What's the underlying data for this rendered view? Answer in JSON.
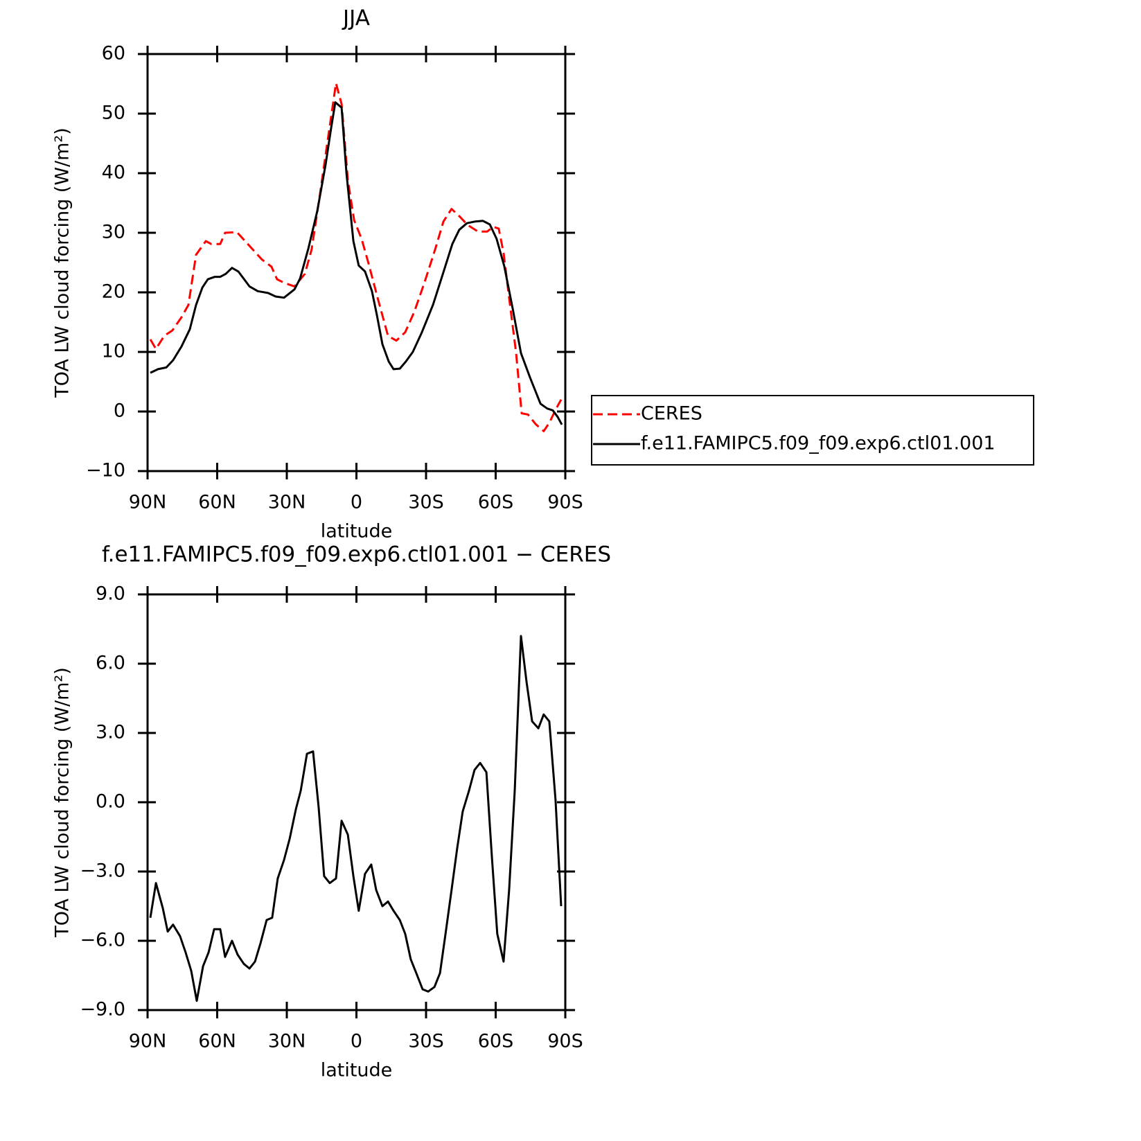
{
  "chart_data": [
    {
      "type": "line",
      "title": "JJA",
      "xlabel": "latitude",
      "ylabel": "TOA LW cloud forcing (W/m²)",
      "xlim": [
        90,
        -90
      ],
      "xticks": [
        {
          "value": 90,
          "label": "90N"
        },
        {
          "value": 60,
          "label": "60N"
        },
        {
          "value": 30,
          "label": "30N"
        },
        0,
        {
          "value": -30,
          "label": "30S"
        },
        {
          "value": -60,
          "label": "60S"
        },
        {
          "value": -90,
          "label": "90S"
        }
      ],
      "ylim": [
        -10,
        60
      ],
      "yticks": [
        {
          "value": -10,
          "label": "−10"
        },
        0,
        10,
        20,
        30,
        40,
        50,
        60
      ],
      "legend": "right",
      "series": [
        {
          "name": "CERES",
          "color": "#ff0000",
          "dash": true,
          "x": [
            88.8,
            86.4,
            82.8,
            79.3,
            75.4,
            72.4,
            69.1,
            64.9,
            62.5,
            58.7,
            56.6,
            51.5,
            46.1,
            40.7,
            36.6,
            34.2,
            31.2,
            26.7,
            22.2,
            19.3,
            15.7,
            12.7,
            8.8,
            6.4,
            3.7,
            1.0,
            -2.2,
            -5.2,
            -9.1,
            -13.6,
            -17.2,
            -21.0,
            -24.9,
            -29.1,
            -33.9,
            -37.5,
            -41.0,
            -44.3,
            -47.9,
            -52.4,
            -56.3,
            -59.0,
            -61.3,
            -63.4,
            -65.8,
            -68.8,
            -71.2,
            -73.9,
            -77.2,
            -80.7,
            -83.1,
            -86.1,
            -88.2
          ],
          "values": [
            12.1,
            10.5,
            12.7,
            13.6,
            15.8,
            17.9,
            26.3,
            28.6,
            28.1,
            28.1,
            30,
            30.1,
            27.8,
            25.5,
            24.3,
            22.2,
            21.6,
            21,
            23.1,
            27.2,
            36.5,
            44.7,
            55.1,
            51.6,
            38.8,
            32.1,
            29,
            24.9,
            19.1,
            12.7,
            11.9,
            13.3,
            16.7,
            21.4,
            27.2,
            31.9,
            34,
            32.8,
            31.3,
            30.2,
            30.2,
            31,
            30.7,
            26.6,
            19.1,
            9.8,
            -0.3,
            -0.5,
            -2.1,
            -3.3,
            -1.9,
            0.5,
            2
          ]
        },
        {
          "name": "f.e11.FAMIPC5.f09_f09.exp6.ctl01.001",
          "color": "#000000",
          "dash": false,
          "x": [
            88.8,
            85.5,
            81.9,
            79.0,
            75.4,
            71.8,
            69.1,
            66.4,
            64.0,
            61.0,
            58.7,
            56.3,
            53.6,
            50.9,
            46.1,
            42.5,
            38.1,
            34.8,
            31.2,
            26.7,
            24.3,
            20.7,
            16.9,
            13.3,
            10.9,
            9.1,
            6.4,
            4.3,
            1.3,
            -1.0,
            -3.7,
            -6.7,
            -8.8,
            -11.2,
            -13.9,
            -16.0,
            -18.7,
            -21.3,
            -24.3,
            -28.2,
            -33.0,
            -37.5,
            -41.3,
            -44.3,
            -47.6,
            -51.2,
            -54.5,
            -57.5,
            -60.4,
            -63.7,
            -67.3,
            -70.9,
            -74.8,
            -79.3,
            -82.2,
            -84.6,
            -86.7,
            -88.5
          ],
          "values": [
            6.5,
            7.1,
            7.4,
            8.6,
            10.9,
            13.8,
            17.9,
            20.8,
            22.2,
            22.6,
            22.6,
            23.1,
            24.1,
            23.5,
            21,
            20.2,
            19.9,
            19.3,
            19.1,
            20.5,
            22.3,
            27.4,
            33.6,
            41.4,
            47.6,
            51.9,
            51,
            40,
            28.6,
            24.5,
            23.5,
            20.2,
            16.2,
            11.3,
            8.4,
            7.1,
            7.2,
            8.4,
            10,
            13.3,
            17.9,
            23.4,
            28.1,
            30.5,
            31.6,
            31.9,
            32,
            31.4,
            29,
            24.4,
            17.3,
            9.8,
            5.7,
            1.3,
            0.5,
            0.2,
            -0.9,
            -2.2
          ]
        }
      ]
    },
    {
      "type": "line",
      "title": "f.e11.FAMIPC5.f09_f09.exp6.ctl01.001 − CERES",
      "xlabel": "latitude",
      "ylabel": "TOA LW cloud forcing (W/m²)",
      "xlim": [
        90,
        -90
      ],
      "xticks": [
        {
          "value": 90,
          "label": "90N"
        },
        {
          "value": 60,
          "label": "60N"
        },
        {
          "value": 30,
          "label": "30N"
        },
        0,
        {
          "value": -30,
          "label": "30S"
        },
        {
          "value": -60,
          "label": "60S"
        },
        {
          "value": -90,
          "label": "90S"
        }
      ],
      "ylim": [
        -9,
        9
      ],
      "yticks": [
        {
          "value": -9,
          "label": "−9.0"
        },
        {
          "value": -6,
          "label": "−6.0"
        },
        {
          "value": -3,
          "label": "−3.0"
        },
        {
          "value": 0,
          "label": "0.0"
        },
        {
          "value": 3,
          "label": "3.0"
        },
        {
          "value": 6,
          "label": "6.0"
        },
        {
          "value": 9,
          "label": "9.0"
        }
      ],
      "series": [
        {
          "color": "#000000",
          "dash": false,
          "x": [
            88.8,
            86.4,
            83.4,
            81.3,
            79.0,
            76.0,
            73.6,
            71.2,
            68.8,
            66.1,
            63.7,
            61.3,
            58.7,
            56.6,
            53.6,
            51.2,
            48.5,
            46.1,
            43.7,
            41.3,
            38.7,
            36.3,
            33.9,
            31.2,
            28.8,
            26.1,
            24.0,
            21.3,
            18.7,
            16.3,
            13.9,
            11.5,
            8.8,
            6.4,
            3.7,
            1.3,
            -1.0,
            -3.7,
            -6.4,
            -8.5,
            -11.2,
            -13.6,
            -16.0,
            -18.7,
            -21.0,
            -23.4,
            -25.8,
            -28.5,
            -30.9,
            -33.6,
            -36.0,
            -38.4,
            -41.0,
            -43.4,
            -45.8,
            -48.5,
            -50.9,
            -53.3,
            -56.0,
            -58.4,
            -60.7,
            -63.4,
            -65.8,
            -68.2,
            -70.9,
            -73.3,
            -75.7,
            -78.4,
            -80.7,
            -83.1,
            -85.8,
            -88.2
          ],
          "values": [
            -5.0,
            -3.5,
            -4.6,
            -5.6,
            -5.3,
            -5.8,
            -6.5,
            -7.3,
            -8.6,
            -7.1,
            -6.5,
            -5.5,
            -5.5,
            -6.7,
            -6.0,
            -6.6,
            -7.0,
            -7.2,
            -6.9,
            -6.1,
            -5.1,
            -5.0,
            -3.3,
            -2.5,
            -1.6,
            -0.3,
            0.5,
            2.1,
            2.2,
            -0.2,
            -3.2,
            -3.5,
            -3.3,
            -0.8,
            -1.4,
            -3.2,
            -4.7,
            -3.1,
            -2.7,
            -3.8,
            -4.5,
            -4.3,
            -4.7,
            -5.1,
            -5.7,
            -6.8,
            -7.4,
            -8.1,
            -8.2,
            -8.0,
            -7.4,
            -5.7,
            -3.8,
            -2.0,
            -0.4,
            0.5,
            1.4,
            1.7,
            1.3,
            -2.4,
            -5.7,
            -6.9,
            -3.8,
            0.5,
            7.2,
            5.2,
            3.5,
            3.2,
            3.8,
            3.5,
            0.1,
            -4.5
          ]
        }
      ]
    }
  ]
}
